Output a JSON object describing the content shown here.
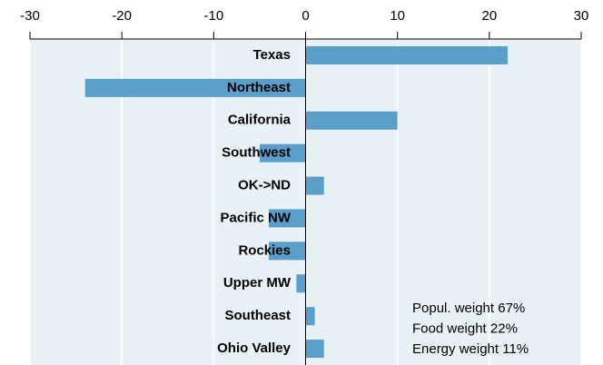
{
  "chart_data": {
    "type": "hbar",
    "categories": [
      "Texas",
      "Northeast",
      "California",
      "Southwest",
      "OK->ND",
      "Pacific NW",
      "Rockies",
      "Upper MW",
      "Southeast",
      "Ohio Valley"
    ],
    "values": [
      22,
      -24,
      10,
      -5,
      2,
      -4,
      -4,
      -1,
      1,
      2
    ],
    "color": "#5b9ec9",
    "background": "#e8f1f5",
    "xlim": [
      -30,
      30
    ],
    "xticks": [
      -30,
      -20,
      -10,
      0,
      10,
      20,
      30
    ],
    "grid": true,
    "annotations": [
      "Popul. weight  67%",
      "Food weight  22%",
      "Energy weight  11%"
    ]
  }
}
